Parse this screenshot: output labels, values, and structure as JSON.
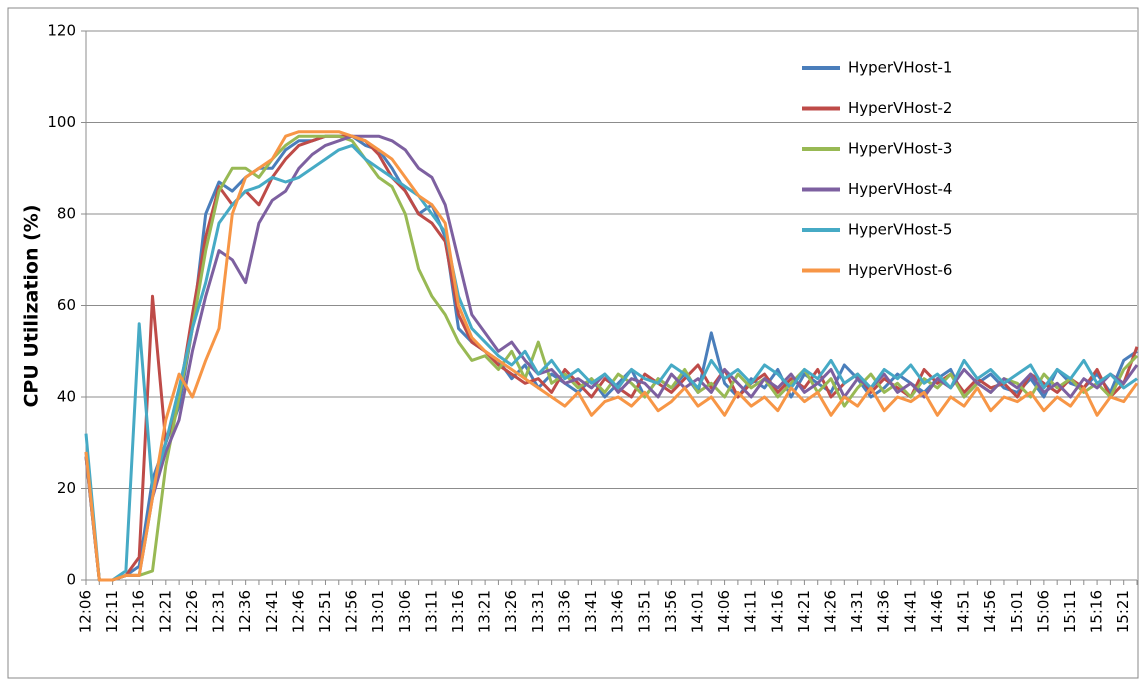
{
  "chart_data": {
    "type": "line",
    "ylabel": "CPU Utilization (%)",
    "categories": [
      "12:06",
      null,
      "12:11",
      null,
      "12:16",
      null,
      "12:21",
      null,
      "12:26",
      null,
      "12:31",
      null,
      "12:36",
      null,
      "12:41",
      null,
      "12:46",
      null,
      "12:51",
      null,
      "12:56",
      null,
      "13:01",
      null,
      "13:06",
      null,
      "13:11",
      null,
      "13:16",
      null,
      "13:21",
      null,
      "13:26",
      null,
      "13:31",
      null,
      "13:36",
      null,
      "13:41",
      null,
      "13:46",
      null,
      "13:51",
      null,
      "13:56",
      null,
      "14:01",
      null,
      "14:06",
      null,
      "14:11",
      null,
      "14:16",
      null,
      "14:21",
      null,
      "14:26",
      null,
      "14:31",
      null,
      "14:36",
      null,
      "14:41",
      null,
      "14:46",
      null,
      "14:51",
      null,
      "14:56",
      null,
      "15:01",
      null,
      "15:06",
      null,
      "15:11",
      null,
      "15:16",
      null,
      "15:21",
      null
    ],
    "series": [
      {
        "name": "HyperVHost-1",
        "color": "#4a7ebb",
        "values": [
          28,
          0,
          0,
          1,
          3,
          22,
          30,
          38,
          55,
          80,
          87,
          85,
          88,
          90,
          90,
          94,
          96,
          96,
          97,
          97,
          97,
          95,
          94,
          90,
          85,
          80,
          82,
          75,
          55,
          52,
          50,
          48,
          44,
          47,
          42,
          45,
          43,
          41,
          44,
          40,
          43,
          46,
          40,
          44,
          42,
          45,
          41,
          54,
          43,
          40,
          44,
          42,
          46,
          40,
          45,
          43,
          41,
          47,
          44,
          40,
          42,
          45,
          43,
          41,
          44,
          46,
          40,
          43,
          45,
          42,
          41,
          44,
          40,
          46,
          43,
          42,
          45,
          41,
          48,
          50
        ]
      },
      {
        "name": "HyperVHost-2",
        "color": "#be4b48",
        "values": [
          27,
          0,
          0,
          1,
          5,
          62,
          30,
          40,
          58,
          75,
          86,
          82,
          85,
          82,
          88,
          92,
          95,
          96,
          97,
          97,
          97,
          96,
          93,
          88,
          85,
          80,
          78,
          74,
          58,
          52,
          50,
          47,
          45,
          43,
          44,
          41,
          46,
          43,
          40,
          44,
          42,
          40,
          45,
          43,
          41,
          44,
          47,
          42,
          46,
          40,
          43,
          45,
          41,
          44,
          42,
          46,
          40,
          43,
          45,
          41,
          44,
          42,
          40,
          46,
          43,
          45,
          41,
          44,
          42,
          43,
          40,
          45,
          43,
          41,
          44,
          42,
          46,
          40,
          43,
          51
        ]
      },
      {
        "name": "HyperVHost-3",
        "color": "#98b954",
        "values": [
          27,
          0,
          0,
          1,
          1,
          2,
          25,
          40,
          55,
          72,
          85,
          90,
          90,
          88,
          92,
          95,
          97,
          97,
          97,
          97,
          96,
          92,
          88,
          86,
          80,
          68,
          62,
          58,
          52,
          48,
          49,
          46,
          50,
          44,
          52,
          43,
          45,
          42,
          44,
          41,
          45,
          43,
          40,
          44,
          42,
          46,
          41,
          43,
          40,
          45,
          42,
          44,
          40,
          43,
          46,
          41,
          44,
          38,
          42,
          45,
          41,
          43,
          40,
          44,
          42,
          45,
          40,
          43,
          41,
          44,
          43,
          40,
          45,
          42,
          44,
          41,
          43,
          40,
          46,
          49
        ]
      },
      {
        "name": "HyperVHost-4",
        "color": "#7d60a0",
        "values": [
          27,
          0,
          0,
          1,
          1,
          18,
          28,
          35,
          50,
          62,
          72,
          70,
          65,
          78,
          83,
          85,
          90,
          93,
          95,
          96,
          97,
          97,
          97,
          96,
          94,
          90,
          88,
          82,
          70,
          58,
          54,
          50,
          52,
          48,
          45,
          46,
          43,
          44,
          42,
          45,
          41,
          44,
          43,
          40,
          45,
          42,
          44,
          41,
          46,
          43,
          40,
          44,
          42,
          45,
          41,
          43,
          46,
          40,
          44,
          42,
          45,
          41,
          43,
          40,
          44,
          42,
          46,
          43,
          41,
          44,
          42,
          45,
          41,
          43,
          40,
          44,
          42,
          45,
          43,
          47
        ]
      },
      {
        "name": "HyperVHost-5",
        "color": "#46aac5",
        "values": [
          32,
          0,
          0,
          2,
          56,
          20,
          30,
          42,
          55,
          65,
          78,
          82,
          85,
          86,
          88,
          87,
          88,
          90,
          92,
          94,
          95,
          92,
          90,
          88,
          86,
          84,
          80,
          76,
          62,
          55,
          52,
          49,
          47,
          50,
          45,
          48,
          44,
          46,
          43,
          45,
          42,
          46,
          44,
          43,
          47,
          45,
          42,
          48,
          44,
          46,
          43,
          47,
          45,
          42,
          46,
          44,
          48,
          43,
          45,
          42,
          46,
          44,
          47,
          43,
          45,
          42,
          48,
          44,
          46,
          43,
          45,
          47,
          42,
          46,
          44,
          48,
          43,
          45,
          42,
          44
        ]
      },
      {
        "name": "HyperVHost-6",
        "color": "#f79646",
        "values": [
          28,
          0,
          0,
          1,
          1,
          18,
          35,
          45,
          40,
          48,
          55,
          80,
          88,
          90,
          92,
          97,
          98,
          98,
          98,
          98,
          97,
          96,
          94,
          92,
          88,
          84,
          82,
          78,
          60,
          53,
          50,
          48,
          46,
          44,
          42,
          40,
          38,
          41,
          36,
          39,
          40,
          38,
          41,
          37,
          39,
          42,
          38,
          40,
          36,
          41,
          38,
          40,
          37,
          42,
          39,
          41,
          36,
          40,
          38,
          42,
          37,
          40,
          39,
          41,
          36,
          40,
          38,
          42,
          37,
          40,
          39,
          41,
          37,
          40,
          38,
          42,
          36,
          40,
          39,
          43
        ]
      }
    ],
    "ylim": [
      0,
      120
    ],
    "yticks": [
      0,
      20,
      40,
      60,
      80,
      100,
      120
    ],
    "grid": true,
    "legend": "upper right"
  }
}
